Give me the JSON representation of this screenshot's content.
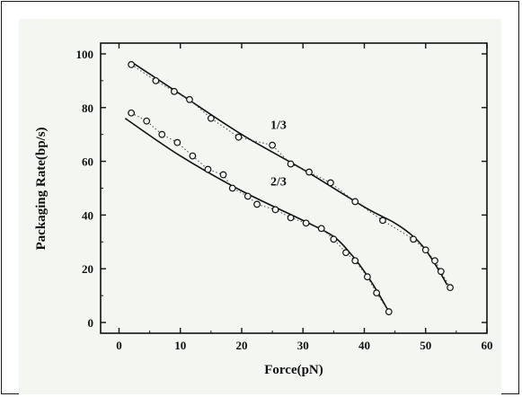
{
  "chart_data": {
    "type": "scatter",
    "title": "",
    "xlabel": "Force(pN)",
    "ylabel": "Packaging Rate(bp/s)",
    "xlim": [
      -3,
      60
    ],
    "ylim": [
      -4,
      104
    ],
    "xticks": [
      0,
      10,
      20,
      30,
      40,
      50,
      60
    ],
    "yticks": [
      0,
      20,
      40,
      60,
      80,
      100
    ],
    "grid": false,
    "legend": "none",
    "series": [
      {
        "name": "1/3",
        "color": "#111111",
        "marker": "open-circle",
        "points": [
          {
            "x": 2,
            "y": 96
          },
          {
            "x": 6,
            "y": 90
          },
          {
            "x": 9,
            "y": 86
          },
          {
            "x": 11.5,
            "y": 83
          },
          {
            "x": 15,
            "y": 76
          },
          {
            "x": 19.5,
            "y": 69
          },
          {
            "x": 25,
            "y": 66
          },
          {
            "x": 28,
            "y": 59
          },
          {
            "x": 31,
            "y": 56
          },
          {
            "x": 34.5,
            "y": 52
          },
          {
            "x": 38.5,
            "y": 45
          },
          {
            "x": 43,
            "y": 38
          },
          {
            "x": 48,
            "y": 31
          },
          {
            "x": 50,
            "y": 27
          },
          {
            "x": 51.5,
            "y": 23
          },
          {
            "x": 52.5,
            "y": 19
          },
          {
            "x": 54,
            "y": 13
          }
        ],
        "fit": [
          {
            "x": 2,
            "y": 97
          },
          {
            "x": 10,
            "y": 85
          },
          {
            "x": 20,
            "y": 70
          },
          {
            "x": 30,
            "y": 57
          },
          {
            "x": 40,
            "y": 43
          },
          {
            "x": 45,
            "y": 37
          },
          {
            "x": 48,
            "y": 32
          },
          {
            "x": 50,
            "y": 27
          },
          {
            "x": 52,
            "y": 20
          },
          {
            "x": 53.5,
            "y": 14
          }
        ]
      },
      {
        "name": "2/3",
        "color": "#111111",
        "marker": "open-circle",
        "points": [
          {
            "x": 2,
            "y": 78
          },
          {
            "x": 4.5,
            "y": 75
          },
          {
            "x": 7,
            "y": 70
          },
          {
            "x": 9.5,
            "y": 67
          },
          {
            "x": 12,
            "y": 62
          },
          {
            "x": 14.5,
            "y": 57
          },
          {
            "x": 17,
            "y": 55
          },
          {
            "x": 18.5,
            "y": 50
          },
          {
            "x": 21,
            "y": 47
          },
          {
            "x": 22.5,
            "y": 44
          },
          {
            "x": 25.5,
            "y": 42
          },
          {
            "x": 28,
            "y": 39
          },
          {
            "x": 30.5,
            "y": 37
          },
          {
            "x": 33,
            "y": 35
          },
          {
            "x": 35,
            "y": 31
          },
          {
            "x": 37,
            "y": 26
          },
          {
            "x": 38.5,
            "y": 23
          },
          {
            "x": 40.5,
            "y": 17
          },
          {
            "x": 42,
            "y": 11
          },
          {
            "x": 44,
            "y": 4
          }
        ],
        "fit": [
          {
            "x": 1,
            "y": 76
          },
          {
            "x": 10,
            "y": 62
          },
          {
            "x": 20,
            "y": 49
          },
          {
            "x": 30,
            "y": 38
          },
          {
            "x": 35,
            "y": 32
          },
          {
            "x": 38,
            "y": 25
          },
          {
            "x": 40,
            "y": 19
          },
          {
            "x": 42,
            "y": 12
          },
          {
            "x": 44,
            "y": 4
          }
        ]
      }
    ],
    "annotations": [
      {
        "text": "1/3",
        "x": 26,
        "y": 72
      },
      {
        "text": "2/3",
        "x": 26,
        "y": 51
      }
    ]
  }
}
